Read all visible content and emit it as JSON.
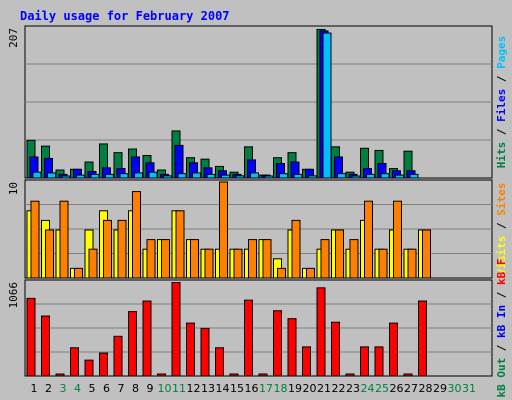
{
  "title": "Daily usage for February 2007",
  "colors": {
    "background": "#c0c0c0",
    "title": "#0000ff",
    "grid": "#808080",
    "hits": "#008040",
    "files": "#0000ff",
    "pages": "#00c0ff",
    "visits": "#ffff00",
    "sites": "#ff8000",
    "kbf": "#ff0000",
    "kbin": "#0000ff",
    "kbout": "#008040",
    "weekday_label": "#000000",
    "weekend_label": "#008040"
  },
  "legends": {
    "top": [
      {
        "text": "Hits",
        "color": "#008040"
      },
      {
        "text": "/",
        "color": "#000000"
      },
      {
        "text": "Files",
        "color": "#0000ff"
      },
      {
        "text": "/",
        "color": "#000000"
      },
      {
        "text": "Pages",
        "color": "#00c0ff"
      }
    ],
    "middle": [
      {
        "text": "Visits",
        "color": "#ffff00"
      },
      {
        "text": "/",
        "color": "#000000"
      },
      {
        "text": "Sites",
        "color": "#ff8000"
      }
    ],
    "bottom": [
      {
        "text": "kB Out",
        "color": "#008040"
      },
      {
        "text": "/",
        "color": "#000000"
      },
      {
        "text": "kB In",
        "color": "#0000ff"
      },
      {
        "text": "/",
        "color": "#000000"
      },
      {
        "text": "kB F",
        "color": "#ff0000"
      }
    ]
  },
  "chart_data": [
    {
      "type": "bar",
      "panel": "hits-files-pages",
      "max_label": "207",
      "ylim": [
        0,
        207
      ],
      "categories": [
        "1",
        "2",
        "3",
        "4",
        "5",
        "6",
        "7",
        "8",
        "9",
        "10",
        "11",
        "12",
        "13",
        "14",
        "15",
        "16",
        "17",
        "18",
        "19",
        "20",
        "21",
        "22",
        "23",
        "24",
        "25",
        "26",
        "27",
        "28",
        "29",
        "30",
        "31"
      ],
      "series": [
        {
          "name": "Hits",
          "values": [
            52,
            44,
            11,
            12,
            22,
            47,
            35,
            40,
            31,
            11,
            65,
            28,
            26,
            16,
            8,
            43,
            4,
            28,
            35,
            12,
            205,
            43,
            8,
            41,
            38,
            13,
            37,
            0,
            0,
            0,
            0
          ]
        },
        {
          "name": "Files",
          "values": [
            29,
            27,
            5,
            12,
            9,
            14,
            13,
            29,
            21,
            5,
            45,
            21,
            14,
            10,
            5,
            25,
            4,
            20,
            22,
            12,
            203,
            29,
            5,
            13,
            20,
            10,
            10,
            0,
            0,
            0,
            0
          ]
        },
        {
          "name": "Pages",
          "values": [
            8,
            7,
            2,
            4,
            5,
            5,
            6,
            7,
            8,
            3,
            6,
            7,
            5,
            4,
            3,
            7,
            2,
            6,
            5,
            3,
            200,
            6,
            2,
            5,
            6,
            4,
            5,
            0,
            0,
            0,
            0
          ]
        }
      ]
    },
    {
      "type": "bar",
      "panel": "visits-sites",
      "max_label": "10",
      "ylim": [
        0,
        10
      ],
      "categories": [
        "1",
        "2",
        "3",
        "4",
        "5",
        "6",
        "7",
        "8",
        "9",
        "10",
        "11",
        "12",
        "13",
        "14",
        "15",
        "16",
        "17",
        "18",
        "19",
        "20",
        "21",
        "22",
        "23",
        "24",
        "25",
        "26",
        "27",
        "28",
        "29",
        "30",
        "31"
      ],
      "series": [
        {
          "name": "Visits",
          "values": [
            7,
            6,
            5,
            1,
            5,
            7,
            5,
            7,
            3,
            4,
            7,
            4,
            3,
            3,
            3,
            3,
            4,
            2,
            5,
            1,
            3,
            5,
            3,
            6,
            3,
            5,
            3,
            5,
            0,
            0,
            0
          ]
        },
        {
          "name": "Sites",
          "values": [
            8,
            5,
            8,
            1,
            3,
            6,
            6,
            9,
            4,
            4,
            7,
            4,
            3,
            10,
            3,
            4,
            4,
            1,
            6,
            1,
            4,
            5,
            4,
            8,
            3,
            8,
            3,
            5,
            0,
            0,
            0
          ]
        }
      ]
    },
    {
      "type": "bar",
      "panel": "kbf-kbin-kbout",
      "max_label": "1066",
      "ylim": [
        0,
        1066
      ],
      "categories": [
        "1",
        "2",
        "3",
        "4",
        "5",
        "6",
        "7",
        "8",
        "9",
        "10",
        "11",
        "12",
        "13",
        "14",
        "15",
        "16",
        "17",
        "18",
        "19",
        "20",
        "21",
        "22",
        "23",
        "24",
        "25",
        "26",
        "27",
        "28",
        "29",
        "30",
        "31"
      ],
      "series": [
        {
          "name": "kB F",
          "values": [
            880,
            680,
            20,
            320,
            180,
            260,
            450,
            730,
            850,
            0,
            1060,
            600,
            540,
            320,
            0,
            860,
            0,
            740,
            650,
            330,
            1000,
            610,
            0,
            330,
            330,
            600,
            0,
            850,
            0,
            0,
            0
          ]
        }
      ]
    }
  ],
  "x_labels": [
    {
      "text": "1",
      "weekend": false
    },
    {
      "text": "2",
      "weekend": false
    },
    {
      "text": "3",
      "weekend": true
    },
    {
      "text": "4",
      "weekend": true
    },
    {
      "text": "5",
      "weekend": false
    },
    {
      "text": "6",
      "weekend": false
    },
    {
      "text": "7",
      "weekend": false
    },
    {
      "text": "8",
      "weekend": false
    },
    {
      "text": "9",
      "weekend": false
    },
    {
      "text": "10",
      "weekend": true
    },
    {
      "text": "11",
      "weekend": true
    },
    {
      "text": "12",
      "weekend": false
    },
    {
      "text": "13",
      "weekend": false
    },
    {
      "text": "14",
      "weekend": false
    },
    {
      "text": "15",
      "weekend": false
    },
    {
      "text": "16",
      "weekend": false
    },
    {
      "text": "17",
      "weekend": true
    },
    {
      "text": "18",
      "weekend": true
    },
    {
      "text": "19",
      "weekend": false
    },
    {
      "text": "20",
      "weekend": false
    },
    {
      "text": "21",
      "weekend": false
    },
    {
      "text": "22",
      "weekend": false
    },
    {
      "text": "23",
      "weekend": false
    },
    {
      "text": "24",
      "weekend": true
    },
    {
      "text": "25",
      "weekend": true
    },
    {
      "text": "26",
      "weekend": false
    },
    {
      "text": "27",
      "weekend": false
    },
    {
      "text": "28",
      "weekend": false
    },
    {
      "text": "29",
      "weekend": false
    },
    {
      "text": "30",
      "weekend": true
    },
    {
      "text": "31",
      "weekend": true
    }
  ]
}
